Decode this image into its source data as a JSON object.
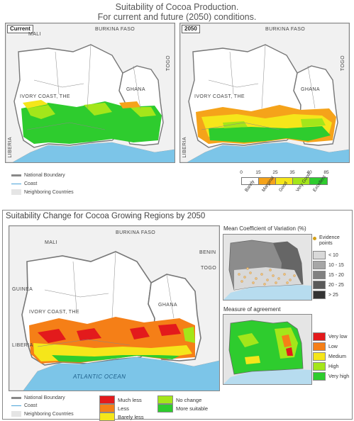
{
  "header": {
    "title_line1": "Suitability of Cocoa Production.",
    "title_line2": "For current and future (2050) conditions."
  },
  "top_maps": {
    "current": {
      "tag": "Current",
      "labels": {
        "mali": "MALI",
        "burkina": "BURKINA FASO",
        "togo": "TOGO",
        "ivory": "IVORY COAST, THE",
        "ghana": "GHANA",
        "liberia": "LIBERIA"
      }
    },
    "future": {
      "tag": "2050",
      "labels": {
        "burkina": "BURKINA FASO",
        "togo": "TOGO",
        "ivory": "IVORY COAST, THE",
        "ghana": "GHANA",
        "liberia": "LIBERIA"
      }
    }
  },
  "top_legend": {
    "national_boundary": "National Boundary",
    "coast": "Coast",
    "neighboring": "Neighboring Countries"
  },
  "suitability_scale": {
    "breaks": [
      "0",
      "15",
      "25",
      "35",
      "40",
      "85"
    ],
    "classes": [
      "Barely",
      "Marginal",
      "Good",
      "Very Good",
      "Excellent"
    ],
    "colors": [
      "#ffffff",
      "#f5a31a",
      "#f5e61a",
      "#a4e61a",
      "#2ecc2e"
    ]
  },
  "change_section": {
    "title": "Suitability Change for Cocoa Growing Regions by 2050",
    "labels": {
      "mali": "MALI",
      "burkina": "BURKINA FASO",
      "benin": "BENIN",
      "togo": "TOGO",
      "guinea": "GUINEA",
      "ivory": "IVORY COAST, THE",
      "ghana": "GHANA",
      "liberia": "LIBERIA",
      "ocean": "ATLANTIC OCEAN"
    }
  },
  "cv_inset": {
    "title": "Mean Coefficient of Variation (%)",
    "evidence_label": "Evidence points",
    "classes": [
      {
        "label": "< 10",
        "color": "#d9d9d9"
      },
      {
        "label": "10 - 15",
        "color": "#a6a6a6"
      },
      {
        "label": "15 - 20",
        "color": "#808080"
      },
      {
        "label": "20 - 25",
        "color": "#5a5a5a"
      },
      {
        "label": "> 25",
        "color": "#333333"
      }
    ]
  },
  "agreement_inset": {
    "title": "Measure of agreement",
    "classes": [
      {
        "label": "Very low",
        "color": "#e31a1c"
      },
      {
        "label": "Low",
        "color": "#f57f17"
      },
      {
        "label": "Medium",
        "color": "#f5e61a"
      },
      {
        "label": "High",
        "color": "#a4e61a"
      },
      {
        "label": "Very high",
        "color": "#2ecc2e"
      }
    ]
  },
  "bottom_legend": {
    "national_boundary": "National Boundary",
    "coast": "Coast",
    "neighboring": "Neighboring Countries"
  },
  "change_key": [
    {
      "label": "Much less",
      "color": "#e31a1c"
    },
    {
      "label": "Less",
      "color": "#f57f17"
    },
    {
      "label": "Barely less",
      "color": "#f5e61a"
    },
    {
      "label": "No change",
      "color": "#a4e61a"
    },
    {
      "label": "More suitable",
      "color": "#2ecc2e"
    }
  ]
}
